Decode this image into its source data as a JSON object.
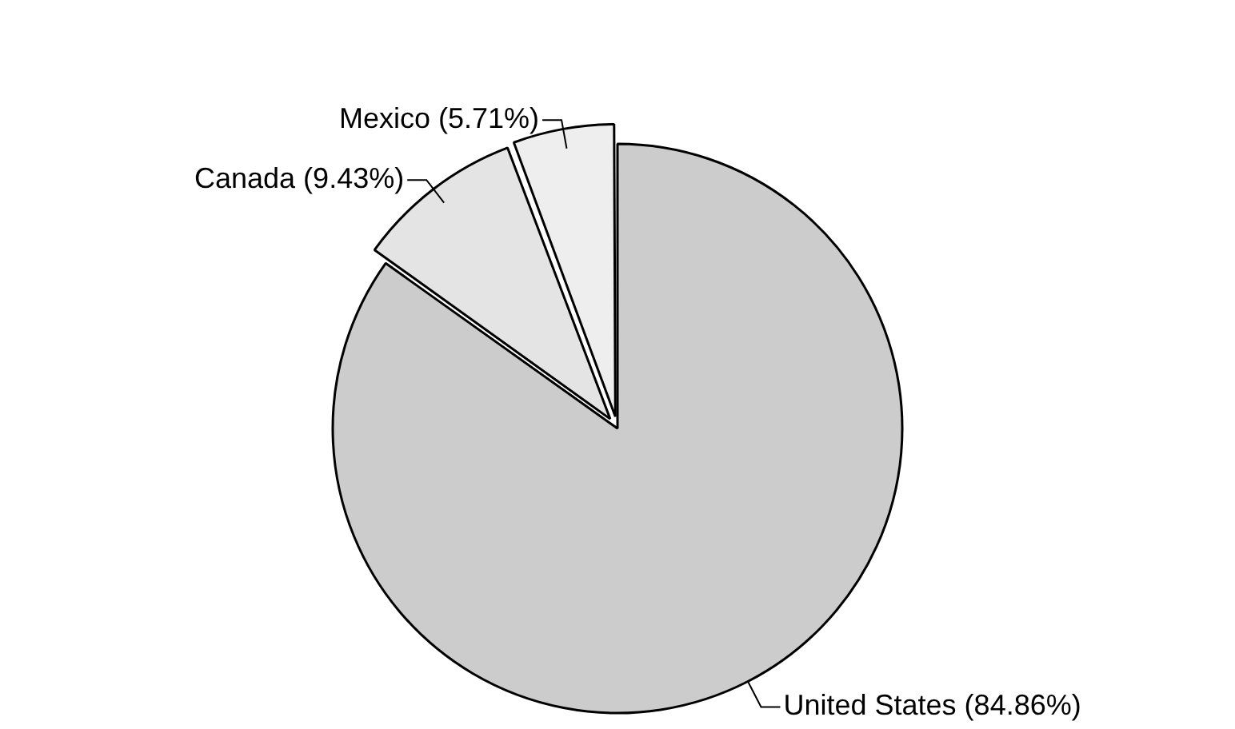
{
  "chart_data": {
    "type": "pie",
    "categories": [
      "United States",
      "Canada",
      "Mexico"
    ],
    "values": [
      84.86,
      9.43,
      5.71
    ],
    "value_labels": [
      "(84.86%)",
      "(9.43%)",
      "(5.71%)"
    ],
    "colors": [
      "#cccccc",
      "#e4e4e4",
      "#eeeeee"
    ],
    "legend": false
  }
}
